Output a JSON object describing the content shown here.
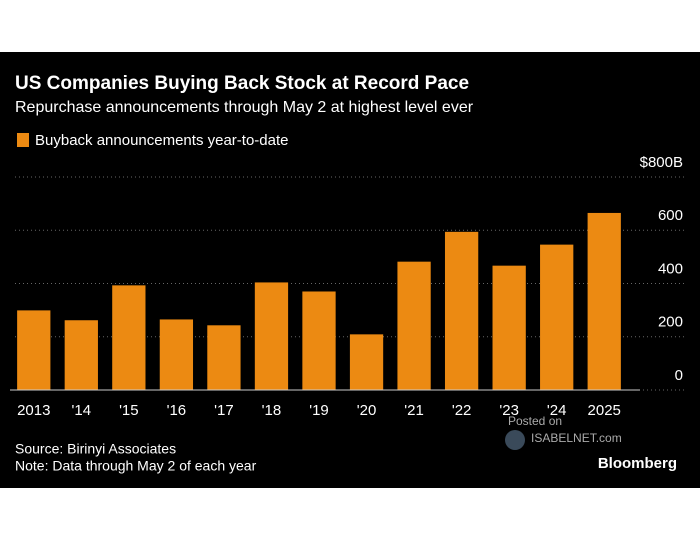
{
  "chart_data": {
    "type": "bar",
    "title": "US Companies Buying Back Stock at Record Pace",
    "subtitle": "Repurchase announcements through May 2 at highest level ever",
    "categories": [
      "2013",
      "'14",
      "'15",
      "'16",
      "'17",
      "'18",
      "'19",
      "'20",
      "'21",
      "'22",
      "'23",
      "'24",
      "2025"
    ],
    "series": [
      {
        "name": "Buyback announcements year-to-date",
        "color": "#ec8a12",
        "values": [
          299,
          262,
          393,
          265,
          243,
          404,
          370,
          209,
          482,
          594,
          467,
          546,
          665
        ]
      }
    ],
    "ylim": [
      0,
      800
    ],
    "yticks": [
      0,
      200,
      400,
      600,
      {
        "value": 800,
        "label": "$800B"
      }
    ],
    "grid": true,
    "source": "Source: Birinyi Associates",
    "note": "Note: Data through May 2 of each year",
    "brand": "Bloomberg",
    "watermark": [
      "Posted on",
      "ISABELNET.com"
    ]
  }
}
